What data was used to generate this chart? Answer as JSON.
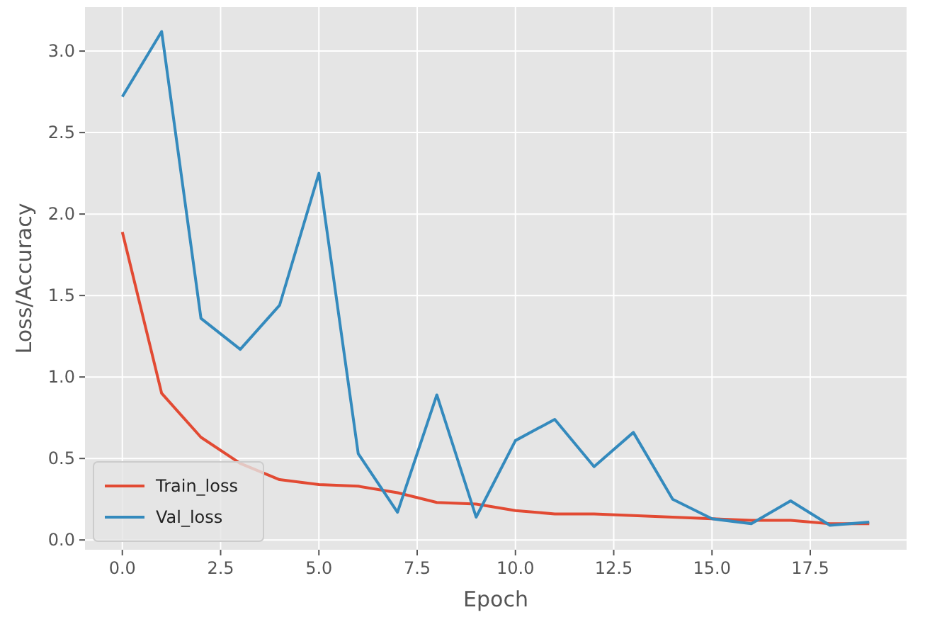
{
  "chart_data": {
    "type": "line",
    "xlabel": "Epoch",
    "ylabel": "Loss/Accuracy",
    "x": [
      0,
      1,
      2,
      3,
      4,
      5,
      6,
      7,
      8,
      9,
      10,
      11,
      12,
      13,
      14,
      15,
      16,
      17,
      18,
      19
    ],
    "series": [
      {
        "name": "Train_loss",
        "color": "#e24a33",
        "values": [
          1.89,
          0.9,
          0.63,
          0.47,
          0.37,
          0.34,
          0.33,
          0.29,
          0.23,
          0.22,
          0.18,
          0.16,
          0.16,
          0.15,
          0.14,
          0.13,
          0.12,
          0.12,
          0.1,
          0.1
        ]
      },
      {
        "name": "Val_loss",
        "color": "#348abd",
        "values": [
          2.72,
          3.12,
          1.36,
          1.17,
          1.44,
          2.25,
          0.53,
          0.17,
          0.89,
          0.14,
          0.61,
          0.74,
          0.45,
          0.66,
          0.25,
          0.13,
          0.1,
          0.24,
          0.09,
          0.11
        ]
      }
    ],
    "xlim": [
      -0.95,
      19.95
    ],
    "ylim": [
      -0.06,
      3.27
    ],
    "xticks": [
      {
        "value": 0,
        "label": "0.0"
      },
      {
        "value": 2.5,
        "label": "2.5"
      },
      {
        "value": 5,
        "label": "5.0"
      },
      {
        "value": 7.5,
        "label": "7.5"
      },
      {
        "value": 10,
        "label": "10.0"
      },
      {
        "value": 12.5,
        "label": "12.5"
      },
      {
        "value": 15,
        "label": "15.0"
      },
      {
        "value": 17.5,
        "label": "17.5"
      }
    ],
    "yticks": [
      {
        "value": 0,
        "label": "0.0"
      },
      {
        "value": 0.5,
        "label": "0.5"
      },
      {
        "value": 1,
        "label": "1.0"
      },
      {
        "value": 1.5,
        "label": "1.5"
      },
      {
        "value": 2,
        "label": "2.0"
      },
      {
        "value": 2.5,
        "label": "2.5"
      },
      {
        "value": 3,
        "label": "3.0"
      }
    ],
    "grid": true,
    "legend": "bottom left",
    "line_style": "solid",
    "marker": "none"
  }
}
